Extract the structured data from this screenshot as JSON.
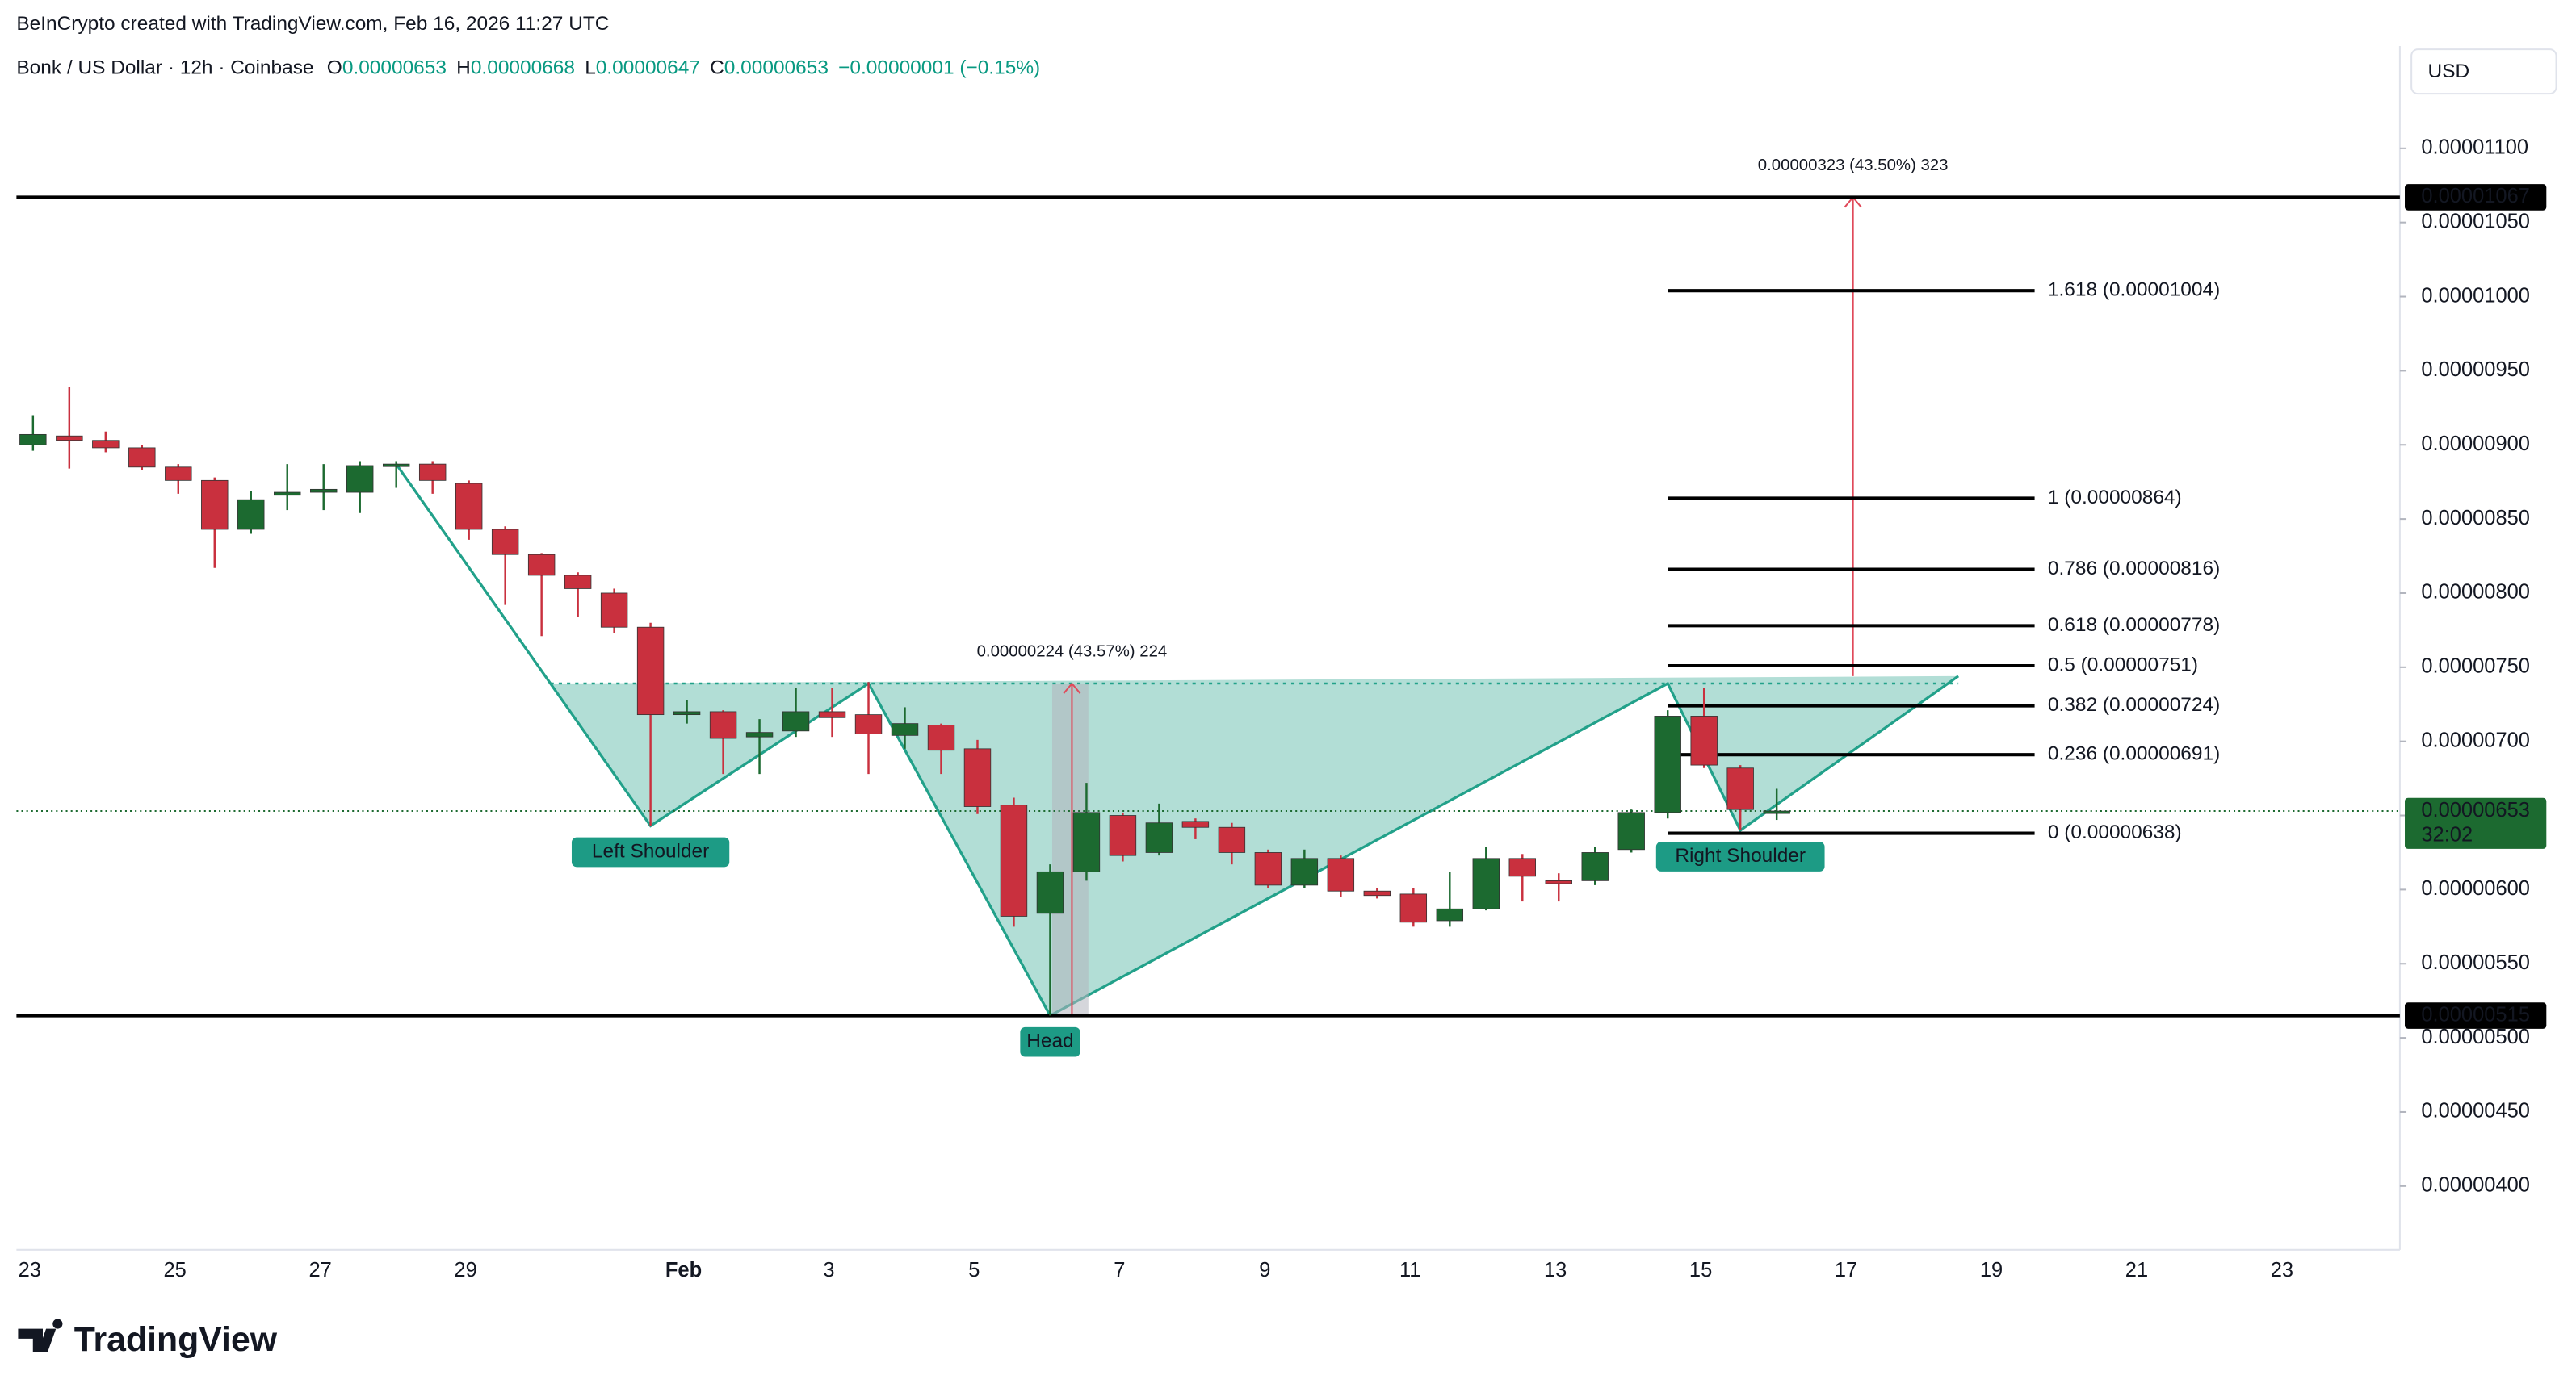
{
  "header": {
    "credit": "BeInCrypto created with TradingView.com, Feb 16, 2026 11:27 UTC"
  },
  "footer": {
    "logo": "TradingView"
  },
  "currency": "USD",
  "chart_data": {
    "type": "candlestick",
    "title": "Bonk / US Dollar · 12h · Coinbase",
    "legend": [
      {
        "key": "O",
        "value": "0.00000653"
      },
      {
        "key": "H",
        "value": "0.00000668"
      },
      {
        "key": "L",
        "value": "0.00000647"
      },
      {
        "key": "C",
        "value": "0.00000653"
      }
    ],
    "change": "−0.00000001 (−0.15%)",
    "up_color": "#1c6a30",
    "down_color": "#c9303e",
    "categories": [
      "23",
      null,
      null,
      null,
      "25",
      null,
      null,
      null,
      "27",
      null,
      null,
      null,
      "29",
      null,
      null,
      null,
      null,
      null,
      "Feb",
      null,
      null,
      null,
      "3",
      null,
      null,
      null,
      "5",
      null,
      null,
      null,
      "7",
      null,
      null,
      null,
      "9",
      null,
      null,
      null,
      "11",
      null,
      null,
      null,
      "13",
      null,
      null,
      null,
      "15",
      null,
      null,
      null,
      "17",
      null,
      null,
      null,
      "19",
      null,
      null,
      null,
      "21",
      null,
      null,
      null,
      "23",
      null,
      null
    ],
    "open": [
      9e-06,
      9.06e-06,
      9.03e-06,
      8.98e-06,
      8.85e-06,
      8.76e-06,
      8.43e-06,
      8.66e-06,
      8.68e-06,
      8.68e-06,
      8.86e-06,
      8.87e-06,
      8.74e-06,
      8.43e-06,
      8.26e-06,
      8.12e-06,
      8e-06,
      7.77e-06,
      7.18e-06,
      7.2e-06,
      7.03e-06,
      7.07e-06,
      7.2e-06,
      7.18e-06,
      7.04e-06,
      7.11e-06,
      6.95e-06,
      6.57e-06,
      5.84e-06,
      6.12e-06,
      6.5e-06,
      6.25e-06,
      6.46e-06,
      6.42e-06,
      6.25e-06,
      6.03e-06,
      6.21e-06,
      5.99e-06,
      5.97e-06,
      5.79e-06,
      5.87e-06,
      6.21e-06,
      6.06e-06,
      6.06e-06,
      6.27e-06,
      6.52e-06,
      7.17e-06,
      6.82e-06,
      6.53e-06,
      null,
      null,
      null,
      null,
      null,
      null,
      null,
      null,
      null,
      null,
      null,
      null,
      null,
      null,
      null,
      null
    ],
    "high": [
      9.2e-06,
      9.39e-06,
      9.09e-06,
      9e-06,
      8.87e-06,
      8.78e-06,
      8.69e-06,
      8.87e-06,
      8.87e-06,
      8.89e-06,
      8.89e-06,
      8.89e-06,
      8.76e-06,
      8.45e-06,
      8.27e-06,
      8.14e-06,
      8.03e-06,
      7.8e-06,
      7.28e-06,
      7.21e-06,
      7.15e-06,
      7.36e-06,
      7.36e-06,
      7.4e-06,
      7.23e-06,
      7.12e-06,
      7.01e-06,
      6.62e-06,
      6.17e-06,
      6.72e-06,
      6.52e-06,
      6.58e-06,
      6.48e-06,
      6.45e-06,
      6.27e-06,
      6.27e-06,
      6.23e-06,
      6.01e-06,
      6.01e-06,
      6.12e-06,
      6.29e-06,
      6.24e-06,
      6.11e-06,
      6.29e-06,
      6.54e-06,
      7.21e-06,
      7.36e-06,
      6.84e-06,
      6.68e-06,
      null,
      null,
      null,
      null,
      null,
      null,
      null,
      null,
      null,
      null,
      null,
      null,
      null,
      null,
      null,
      null
    ],
    "low": [
      8.96e-06,
      8.84e-06,
      8.95e-06,
      8.83e-06,
      8.67e-06,
      8.17e-06,
      8.4e-06,
      8.56e-06,
      8.56e-06,
      8.54e-06,
      8.71e-06,
      8.67e-06,
      8.36e-06,
      7.92e-06,
      7.71e-06,
      7.84e-06,
      7.73e-06,
      6.43e-06,
      7.12e-06,
      6.78e-06,
      6.78e-06,
      7.03e-06,
      7.03e-06,
      6.78e-06,
      6.95e-06,
      6.78e-06,
      6.51e-06,
      5.75e-06,
      5.15e-06,
      6.06e-06,
      6.19e-06,
      6.23e-06,
      6.34e-06,
      6.17e-06,
      6.01e-06,
      6.01e-06,
      5.95e-06,
      5.94e-06,
      5.75e-06,
      5.75e-06,
      5.86e-06,
      5.92e-06,
      5.92e-06,
      6.03e-06,
      6.25e-06,
      6.48e-06,
      6.82e-06,
      6.4e-06,
      6.47e-06,
      null,
      null,
      null,
      null,
      null,
      null,
      null,
      null,
      null,
      null,
      null,
      null,
      null,
      null,
      null,
      null
    ],
    "close": [
      9.07e-06,
      9.03e-06,
      8.98e-06,
      8.85e-06,
      8.76e-06,
      8.43e-06,
      8.63e-06,
      8.68e-06,
      8.7e-06,
      8.86e-06,
      8.87e-06,
      8.76e-06,
      8.43e-06,
      8.26e-06,
      8.12e-06,
      8.03e-06,
      7.77e-06,
      7.18e-06,
      7.2e-06,
      7.02e-06,
      7.06e-06,
      7.2e-06,
      7.16e-06,
      7.05e-06,
      7.12e-06,
      6.94e-06,
      6.56e-06,
      5.82e-06,
      6.12e-06,
      6.52e-06,
      6.23e-06,
      6.45e-06,
      6.42e-06,
      6.25e-06,
      6.03e-06,
      6.21e-06,
      5.99e-06,
      5.96e-06,
      5.78e-06,
      5.87e-06,
      6.21e-06,
      6.09e-06,
      6.04e-06,
      6.25e-06,
      6.52e-06,
      7.17e-06,
      6.84e-06,
      6.54e-06,
      6.53e-06,
      null,
      null,
      null,
      null,
      null,
      null,
      null,
      null,
      null,
      null,
      null,
      null,
      null,
      null,
      null,
      null
    ],
    "ylim": [
      3.57e-06,
      1.169e-05
    ],
    "yticks": [
      {
        "value": 1.1e-05,
        "label": "0.00001100"
      },
      {
        "value": 1.05e-05,
        "label": "0.00001050"
      },
      {
        "value": 1e-05,
        "label": "0.00001000"
      },
      {
        "value": 9.5e-06,
        "label": "0.00000950"
      },
      {
        "value": 9e-06,
        "label": "0.00000900"
      },
      {
        "value": 8.5e-06,
        "label": "0.00000850"
      },
      {
        "value": 8e-06,
        "label": "0.00000800"
      },
      {
        "value": 7.5e-06,
        "label": "0.00000750"
      },
      {
        "value": 7e-06,
        "label": "0.00000700"
      },
      {
        "value": 6.5e-06,
        "label": "0.00000650"
      },
      {
        "value": 6e-06,
        "label": "0.00000600"
      },
      {
        "value": 5.5e-06,
        "label": "0.00000550"
      },
      {
        "value": 5e-06,
        "label": "0.00000500"
      },
      {
        "value": 4.5e-06,
        "label": "0.00000450"
      },
      {
        "value": 4e-06,
        "label": "0.00000400"
      }
    ],
    "grid": false,
    "levels": [
      {
        "value": 1.067e-05,
        "label": "0.00001067"
      },
      {
        "value": 5.15e-06,
        "label": "0.00000515"
      }
    ],
    "last": {
      "value": 6.53e-06,
      "label": "0.00000653",
      "countdown": "32:02",
      "color": "#1c6a30"
    },
    "pattern": {
      "color": "#22a18a",
      "x": [
        10,
        17,
        23,
        28,
        45,
        47,
        53
      ],
      "values": [
        8.87e-06,
        6.43e-06,
        7.39e-06,
        5.15e-06,
        7.39e-06,
        6.4e-06,
        7.44e-06
      ],
      "neckline": 7.39e-06,
      "vertex_labels": [
        null,
        "Left Shoulder",
        null,
        "Head",
        null,
        "Right Shoulder",
        null
      ]
    },
    "measures": [
      {
        "label": "0.00000224 (43.57%) 224",
        "x": 28.6,
        "from": 5.15e-06,
        "to": 7.39e-06,
        "highlight": true
      },
      {
        "label": "0.00000323 (43.50%) 323",
        "x": 50.1,
        "from": 7.44e-06,
        "to": 1.067e-05,
        "highlight": false
      }
    ],
    "fib": {
      "x": [
        45,
        55.1
      ],
      "levels": [
        {
          "value": 1.004e-05,
          "label": "1.618 (0.00001004)"
        },
        {
          "value": 8.64e-06,
          "label": "1 (0.00000864)"
        },
        {
          "value": 8.16e-06,
          "label": "0.786 (0.00000816)"
        },
        {
          "value": 7.78e-06,
          "label": "0.618 (0.00000778)"
        },
        {
          "value": 7.51e-06,
          "label": "0.5 (0.00000751)"
        },
        {
          "value": 7.24e-06,
          "label": "0.382 (0.00000724)"
        },
        {
          "value": 6.91e-06,
          "label": "0.236 (0.00000691)"
        },
        {
          "value": 6.38e-06,
          "label": "0 (0.00000638)"
        }
      ]
    }
  }
}
